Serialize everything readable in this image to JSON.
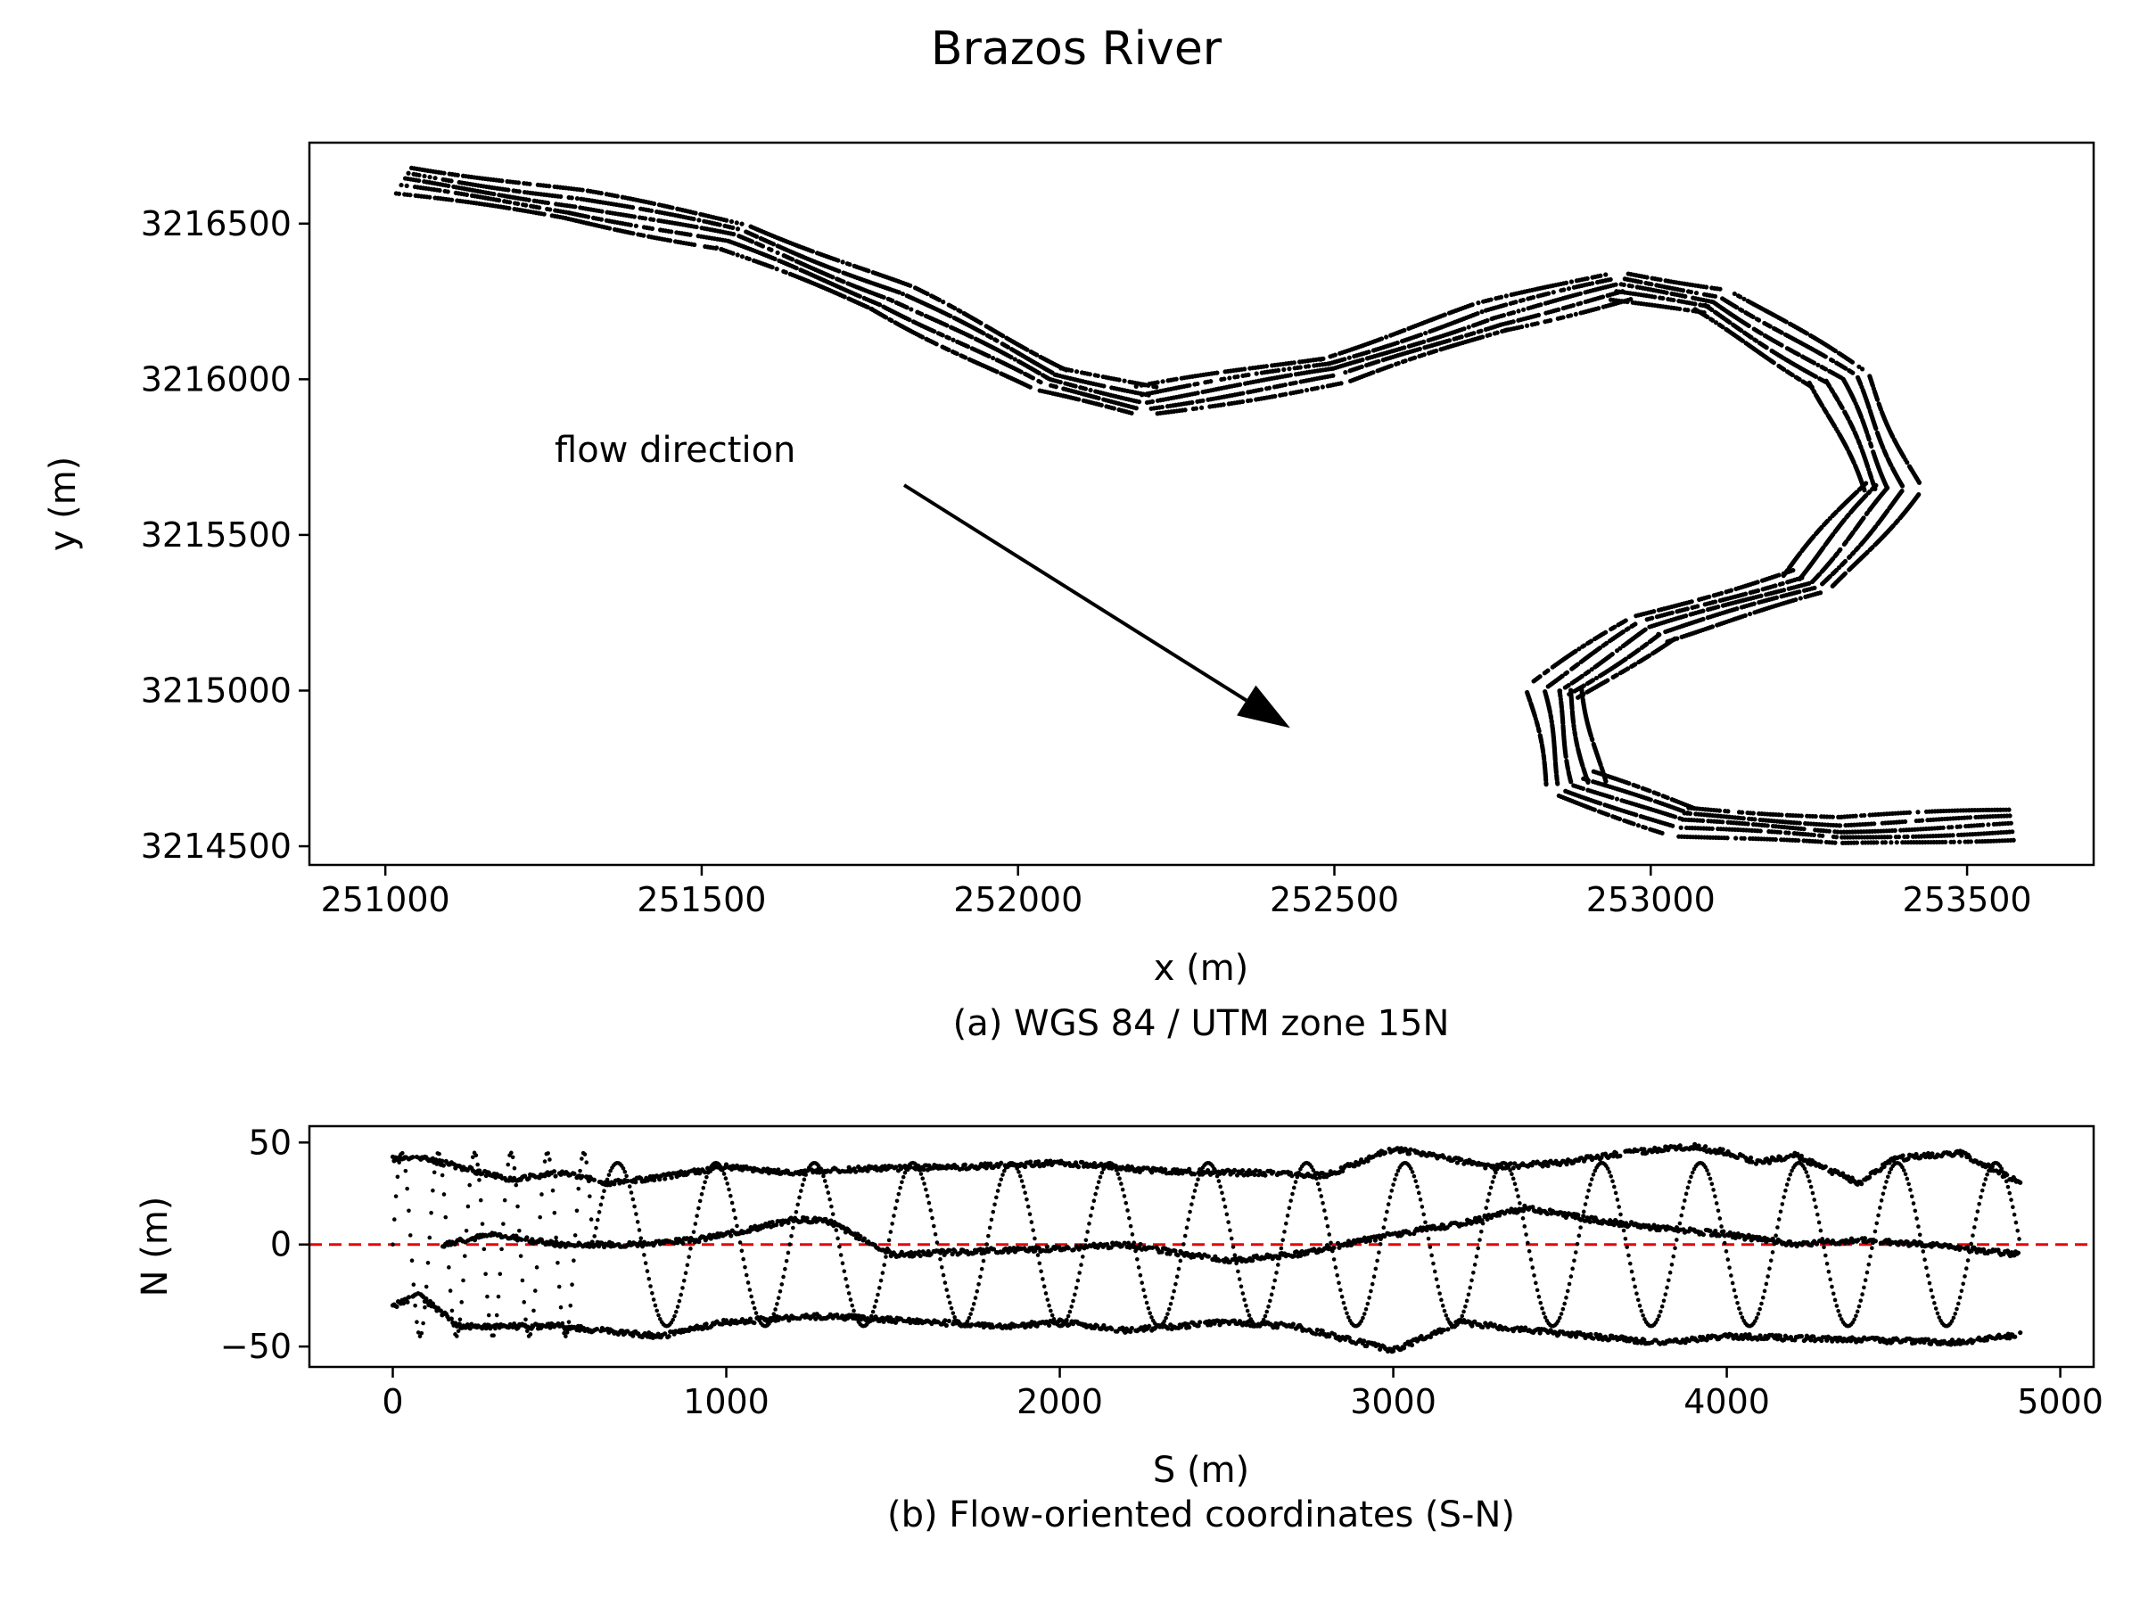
{
  "figure": {
    "title": "Brazos River"
  },
  "chart_data": [
    {
      "id": "a",
      "type": "scatter",
      "caption": "(a) WGS 84 / UTM zone 15N",
      "xlabel": "x (m)",
      "ylabel": "y (m)",
      "xlim": [
        250880,
        253700
      ],
      "ylim": [
        3214440,
        3216760
      ],
      "xticks": [
        251000,
        251500,
        252000,
        252500,
        253000,
        253500
      ],
      "yticks": [
        3214500,
        3215000,
        3215500,
        3216000,
        3216500
      ],
      "grid": false,
      "annotation": {
        "text": "flow direction",
        "arrow_from": [
          251820,
          3215660
        ],
        "arrow_to": [
          252430,
          3214880
        ]
      },
      "centerline": [
        [
          251030,
          3216640
        ],
        [
          251300,
          3216560
        ],
        [
          251550,
          3216460
        ],
        [
          251800,
          3216260
        ],
        [
          252050,
          3216000
        ],
        [
          252200,
          3215930
        ],
        [
          252500,
          3216030
        ],
        [
          252750,
          3216200
        ],
        [
          252950,
          3216300
        ],
        [
          253100,
          3216250
        ],
        [
          253300,
          3216000
        ],
        [
          253380,
          3215650
        ],
        [
          253250,
          3215350
        ],
        [
          253000,
          3215200
        ],
        [
          252850,
          3215000
        ],
        [
          252880,
          3214700
        ],
        [
          253050,
          3214580
        ],
        [
          253300,
          3214550
        ],
        [
          253570,
          3214570
        ]
      ],
      "lane_offsets_m": [
        -45,
        -22,
        0,
        22,
        45
      ]
    },
    {
      "id": "b",
      "type": "scatter",
      "caption": "(b) Flow-oriented coordinates (S-N)",
      "xlabel": "S (m)",
      "ylabel": "N (m)",
      "xlim": [
        -250,
        5100
      ],
      "ylim": [
        -60,
        58
      ],
      "xticks": [
        0,
        1000,
        2000,
        3000,
        4000,
        5000
      ],
      "yticks": [
        -50,
        0,
        50
      ],
      "grid": false,
      "reference_line": {
        "y": 0,
        "color": "#e8000b",
        "style": "dashed"
      },
      "series": [
        {
          "points": [
            [
              0,
              42
            ],
            [
              100,
              42
            ],
            [
              200,
              38
            ],
            [
              350,
              32
            ],
            [
              500,
              35
            ],
            [
              650,
              30
            ],
            [
              800,
              33
            ],
            [
              1000,
              38
            ],
            [
              1200,
              35
            ],
            [
              1400,
              37
            ],
            [
              1700,
              38
            ],
            [
              2000,
              40
            ],
            [
              2300,
              36
            ],
            [
              2600,
              35
            ],
            [
              2800,
              34
            ],
            [
              3000,
              47
            ],
            [
              3300,
              38
            ],
            [
              3500,
              40
            ],
            [
              3700,
              45
            ],
            [
              3900,
              48
            ],
            [
              4000,
              45
            ],
            [
              4100,
              40
            ],
            [
              4200,
              44
            ],
            [
              4400,
              30
            ],
            [
              4500,
              42
            ],
            [
              4700,
              45
            ],
            [
              4880,
              30
            ]
          ]
        },
        {
          "points": [
            [
              0,
              -30
            ],
            [
              80,
              -25
            ],
            [
              200,
              -40
            ],
            [
              300,
              -40
            ],
            [
              500,
              -40
            ],
            [
              800,
              -45
            ],
            [
              1000,
              -38
            ],
            [
              1300,
              -35
            ],
            [
              1600,
              -38
            ],
            [
              1850,
              -40
            ],
            [
              2000,
              -38
            ],
            [
              2200,
              -42
            ],
            [
              2500,
              -38
            ],
            [
              2700,
              -40
            ],
            [
              3000,
              -52
            ],
            [
              3200,
              -38
            ],
            [
              3400,
              -42
            ],
            [
              3600,
              -45
            ],
            [
              3800,
              -48
            ],
            [
              4000,
              -45
            ],
            [
              4700,
              -48
            ],
            [
              4880,
              -44
            ]
          ]
        },
        {
          "points": [
            [
              150,
              0
            ],
            [
              300,
              5
            ],
            [
              500,
              0
            ],
            [
              700,
              0
            ],
            [
              900,
              2
            ],
            [
              1000,
              5
            ],
            [
              1200,
              12
            ],
            [
              1300,
              12
            ],
            [
              1500,
              -5
            ],
            [
              1800,
              -3
            ],
            [
              2000,
              -2
            ],
            [
              2200,
              0
            ],
            [
              2500,
              -8
            ],
            [
              2700,
              -5
            ],
            [
              3000,
              5
            ],
            [
              3200,
              10
            ],
            [
              3400,
              18
            ],
            [
              3600,
              12
            ],
            [
              3800,
              8
            ],
            [
              4000,
              5
            ],
            [
              4200,
              0
            ],
            [
              4400,
              2
            ],
            [
              4600,
              0
            ],
            [
              4880,
              -5
            ]
          ]
        }
      ],
      "weave": [
        {
          "s_range": [
            0,
            600
          ],
          "cycles": 5.5,
          "amplitude": 45
        },
        {
          "s_range": [
            600,
            4880
          ],
          "cycles": 14.5,
          "amplitude": 40
        }
      ]
    }
  ]
}
